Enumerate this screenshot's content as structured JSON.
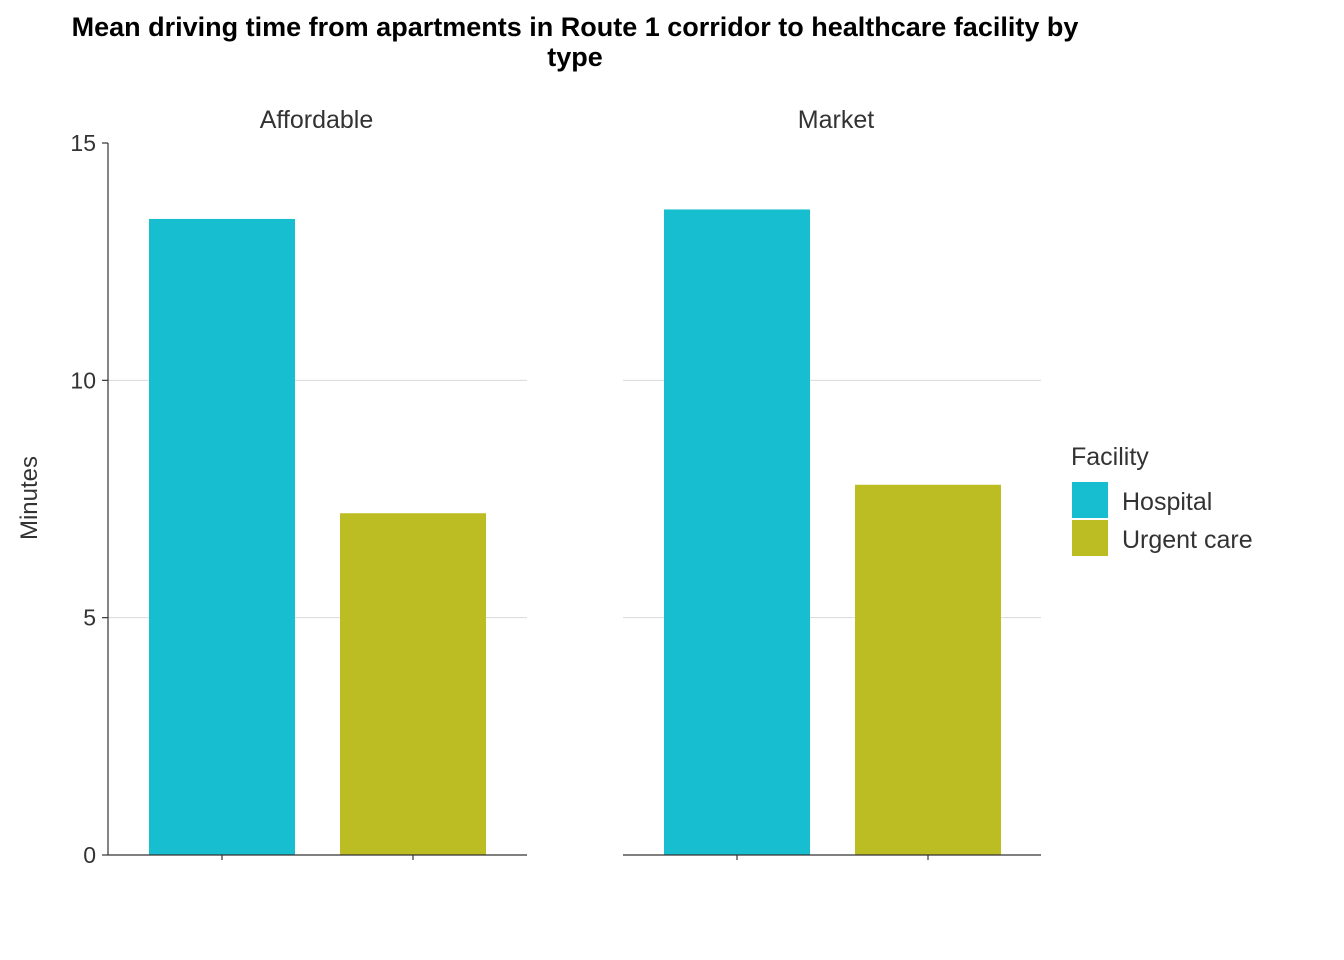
{
  "chart_data": {
    "type": "bar",
    "title_line1": "Mean driving time from apartments in Route 1 corridor to healthcare facility by",
    "title_line2": "type",
    "ylabel": "Minutes",
    "xlabel": "",
    "ylim": [
      0,
      15
    ],
    "yticks": [
      "0",
      "5",
      "10",
      "15"
    ],
    "ytick_values": [
      0,
      5,
      10,
      15
    ],
    "grid": "horizontal",
    "legend_position": "right",
    "legend_title": "Facility",
    "categories": [
      "Hospital",
      "Urgent care"
    ],
    "colors": {
      "Hospital": "#17BECF",
      "Urgent care": "#BCBD22"
    },
    "legend": [
      {
        "name": "Hospital",
        "color": "#17BECF"
      },
      {
        "name": "Urgent care",
        "color": "#BCBD22"
      }
    ],
    "panels": [
      {
        "name": "Affordable",
        "values": [
          13.4,
          7.2
        ]
      },
      {
        "name": "Market",
        "values": [
          13.6,
          7.8
        ]
      }
    ]
  }
}
